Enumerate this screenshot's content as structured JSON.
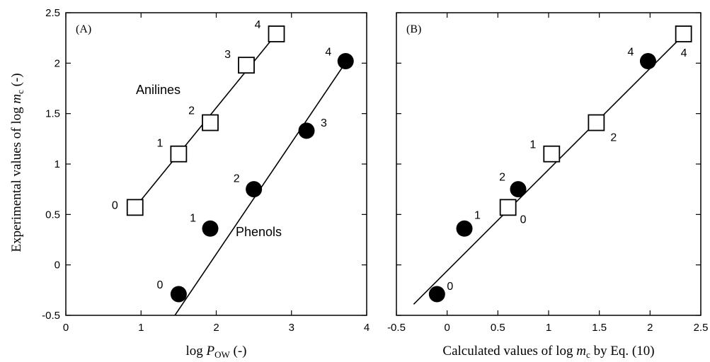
{
  "ylabel": {
    "prefix": "Experimental values of log ",
    "var": "m",
    "sub": "c",
    "suffix": " (-)"
  },
  "chart_data": [
    {
      "type": "scatter",
      "panel_label": "(A)",
      "xlabel": {
        "prefix": "log ",
        "var": "P",
        "sub": "OW",
        "suffix": " (-)"
      },
      "xlim": [
        0,
        4
      ],
      "ylim": [
        -0.5,
        2.5
      ],
      "xticks": [
        "0",
        "1",
        "2",
        "3",
        "4"
      ],
      "yticks": [
        "-0.5",
        "0",
        "0.5",
        "1",
        "1.5",
        "2",
        "2.5"
      ],
      "series": [
        {
          "name": "Anilines",
          "marker": "open-square",
          "x": [
            0.92,
            1.5,
            1.92,
            2.4,
            2.8
          ],
          "y": [
            0.57,
            1.1,
            1.41,
            1.98,
            2.29
          ],
          "labels": [
            "0",
            "1",
            "2",
            "3",
            "4"
          ],
          "fit": [
            [
              0.92,
              0.57
            ],
            [
              2.8,
              2.29
            ]
          ]
        },
        {
          "name": "Phenols",
          "marker": "filled-circle",
          "x": [
            1.5,
            1.92,
            2.5,
            3.2,
            3.72
          ],
          "y": [
            -0.29,
            0.36,
            0.75,
            1.33,
            2.02
          ],
          "labels": [
            "0",
            "1",
            "2",
            "3",
            "4"
          ],
          "fit": [
            [
              1.45,
              -0.5
            ],
            [
              3.75,
              2.04
            ]
          ]
        }
      ]
    },
    {
      "type": "scatter",
      "panel_label": "(B)",
      "xlabel": {
        "prefix": "Calculated values of log ",
        "var": "m",
        "sub": "c",
        "suffix": " by Eq. (10)"
      },
      "xlim": [
        -0.5,
        2.5
      ],
      "ylim": [
        -0.5,
        2.5
      ],
      "xticks": [
        "-0.5",
        "0",
        "0.5",
        "1",
        "1.5",
        "2",
        "2.5"
      ],
      "yticks": [
        "-0.5",
        "0",
        "0.5",
        "1",
        "1.5",
        "2",
        "2.5"
      ],
      "series": [
        {
          "marker": "open-square",
          "x": [
            0.6,
            1.03,
            1.47,
            2.33
          ],
          "y": [
            0.57,
            1.1,
            1.41,
            2.29
          ],
          "labels": [
            "0",
            "1",
            "2",
            "4"
          ]
        },
        {
          "marker": "filled-circle",
          "x": [
            -0.1,
            0.17,
            0.7,
            1.98
          ],
          "y": [
            -0.29,
            0.36,
            0.75,
            2.02
          ],
          "labels": [
            "0",
            "1",
            "2",
            "4"
          ]
        }
      ],
      "fit": [
        [
          -0.33,
          -0.39
        ],
        [
          2.35,
          2.3
        ]
      ]
    }
  ]
}
